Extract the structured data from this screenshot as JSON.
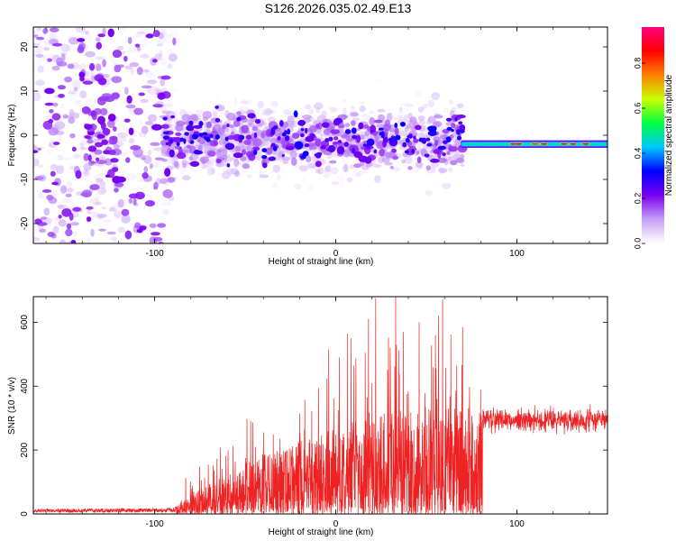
{
  "title": "S126.2026.035.02.49.E13",
  "chart_data": [
    {
      "type": "heatmap",
      "xlabel": "Height of straight line (km)",
      "ylabel": "Frequency (Hz)",
      "xlim": [
        -167,
        150
      ],
      "ylim": [
        -24.5,
        24.5
      ],
      "x_ticks": [
        -100,
        0,
        100
      ],
      "y_ticks": [
        -20,
        -10,
        0,
        10,
        20
      ],
      "colorbar": {
        "label": "Normalized spectral amplitude",
        "range": [
          0.0,
          0.96
        ],
        "ticks": [
          "0.0",
          "0.2",
          "0.4",
          "0.6",
          "0.8"
        ],
        "colors": [
          "#ffffff",
          "#c8a0f8",
          "#7a00f0",
          "#0000ff",
          "#00c8ff",
          "#00ff40",
          "#c8ff00",
          "#ff8000",
          "#ff0000",
          "#ff0080"
        ]
      },
      "regions": [
        {
          "x_range": [
            -167,
            -95
          ],
          "freq_center": 0,
          "freq_spread": 24,
          "mean_amplitude": 0.08,
          "note_level": "sparse"
        },
        {
          "x_range": [
            -95,
            70
          ],
          "freq_center": -1,
          "freq_spread": 7,
          "mean_amplitude": 0.18
        },
        {
          "x_range": [
            70,
            150
          ],
          "freq_center": -2,
          "freq_spread": 1.5,
          "mean_amplitude": 0.55,
          "peak_amplitude": 0.92
        }
      ]
    },
    {
      "type": "line",
      "xlabel": "Height of straight line (km)",
      "ylabel": "SNR (10 * v/v)",
      "xlim": [
        -167,
        150
      ],
      "ylim": [
        0,
        680
      ],
      "x_ticks": [
        -100,
        0,
        100
      ],
      "y_ticks": [
        0,
        200,
        400,
        600
      ],
      "color": "#ee2222",
      "envelope": [
        {
          "x": -167,
          "y": 12
        },
        {
          "x": -90,
          "y": 15
        },
        {
          "x": -80,
          "y": 50
        },
        {
          "x": -60,
          "y": 90
        },
        {
          "x": -40,
          "y": 140
        },
        {
          "x": -20,
          "y": 170
        },
        {
          "x": 0,
          "y": 200
        },
        {
          "x": 20,
          "y": 230
        },
        {
          "x": 40,
          "y": 240
        },
        {
          "x": 60,
          "y": 250
        },
        {
          "x": 80,
          "y": 240
        },
        {
          "x": 81,
          "y": 295
        },
        {
          "x": 150,
          "y": 295
        }
      ],
      "peaks": [
        {
          "x": 2,
          "y": 490
        },
        {
          "x": 18,
          "y": 610
        },
        {
          "x": 22,
          "y": 675
        },
        {
          "x": 30,
          "y": 520
        },
        {
          "x": 33,
          "y": 680
        },
        {
          "x": 46,
          "y": 600
        },
        {
          "x": 55,
          "y": 560
        },
        {
          "x": 59,
          "y": 672
        },
        {
          "x": 70,
          "y": 585
        }
      ]
    }
  ]
}
